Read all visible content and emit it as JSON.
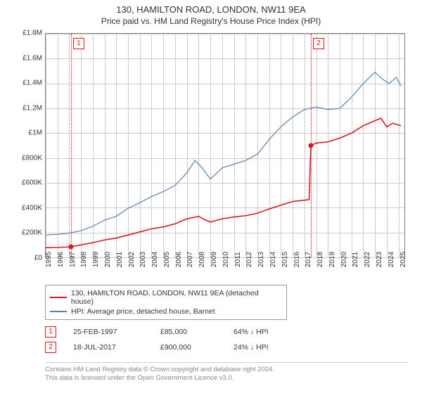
{
  "title": "130, HAMILTON ROAD, LONDON, NW11 9EA",
  "subtitle": "Price paid vs. HM Land Registry's House Price Index (HPI)",
  "chart": {
    "type": "line",
    "background_color": "#ffffff",
    "grid_color": "#cccccc",
    "border_color": "#7f7f7f",
    "label_fontsize": 10,
    "xlim": [
      1995,
      2025.5
    ],
    "ylim": [
      0,
      1800000
    ],
    "ytick_step": 200000,
    "yticks": [
      {
        "v": 0,
        "label": "£0"
      },
      {
        "v": 200000,
        "label": "£200K"
      },
      {
        "v": 400000,
        "label": "£400K"
      },
      {
        "v": 600000,
        "label": "£600K"
      },
      {
        "v": 800000,
        "label": "£800K"
      },
      {
        "v": 1000000,
        "label": "£1M"
      },
      {
        "v": 1200000,
        "label": "£1.2M"
      },
      {
        "v": 1400000,
        "label": "£1.4M"
      },
      {
        "v": 1600000,
        "label": "£1.6M"
      },
      {
        "v": 1800000,
        "label": "£1.8M"
      }
    ],
    "xticks": [
      1995,
      1996,
      1997,
      1998,
      1999,
      2000,
      2001,
      2002,
      2003,
      2004,
      2005,
      2006,
      2007,
      2008,
      2009,
      2010,
      2011,
      2012,
      2013,
      2014,
      2015,
      2016,
      2017,
      2018,
      2019,
      2020,
      2021,
      2022,
      2023,
      2024,
      2025
    ],
    "series_property": {
      "color": "#d8181e",
      "line_width": 1.6,
      "data": [
        [
          1995.0,
          78000
        ],
        [
          1996.0,
          80000
        ],
        [
          1997.15,
          85000
        ],
        [
          1998.0,
          100000
        ],
        [
          1999.0,
          118000
        ],
        [
          2000.0,
          140000
        ],
        [
          2001.0,
          155000
        ],
        [
          2002.0,
          180000
        ],
        [
          2003.0,
          205000
        ],
        [
          2004.0,
          230000
        ],
        [
          2005.0,
          245000
        ],
        [
          2006.0,
          270000
        ],
        [
          2007.0,
          310000
        ],
        [
          2008.0,
          330000
        ],
        [
          2008.6,
          300000
        ],
        [
          2009.0,
          285000
        ],
        [
          2010.0,
          310000
        ],
        [
          2011.0,
          325000
        ],
        [
          2012.0,
          335000
        ],
        [
          2013.0,
          355000
        ],
        [
          2014.0,
          390000
        ],
        [
          2015.0,
          420000
        ],
        [
          2016.0,
          450000
        ],
        [
          2017.0,
          460000
        ],
        [
          2017.4,
          465000
        ],
        [
          2017.55,
          900000
        ],
        [
          2018.0,
          920000
        ],
        [
          2019.0,
          930000
        ],
        [
          2020.0,
          960000
        ],
        [
          2021.0,
          1000000
        ],
        [
          2022.0,
          1060000
        ],
        [
          2023.0,
          1100000
        ],
        [
          2023.5,
          1120000
        ],
        [
          2024.0,
          1050000
        ],
        [
          2024.5,
          1080000
        ],
        [
          2025.2,
          1060000
        ]
      ]
    },
    "series_hpi": {
      "color": "#5b7fb5",
      "line_width": 1.2,
      "data": [
        [
          1995.0,
          180000
        ],
        [
          1996.0,
          185000
        ],
        [
          1997.0,
          195000
        ],
        [
          1998.0,
          215000
        ],
        [
          1999.0,
          250000
        ],
        [
          2000.0,
          300000
        ],
        [
          2001.0,
          330000
        ],
        [
          2002.0,
          395000
        ],
        [
          2003.0,
          440000
        ],
        [
          2004.0,
          490000
        ],
        [
          2005.0,
          530000
        ],
        [
          2006.0,
          580000
        ],
        [
          2007.0,
          680000
        ],
        [
          2007.7,
          780000
        ],
        [
          2008.3,
          720000
        ],
        [
          2009.0,
          630000
        ],
        [
          2010.0,
          720000
        ],
        [
          2011.0,
          750000
        ],
        [
          2012.0,
          780000
        ],
        [
          2013.0,
          830000
        ],
        [
          2014.0,
          950000
        ],
        [
          2015.0,
          1050000
        ],
        [
          2016.0,
          1130000
        ],
        [
          2017.0,
          1190000
        ],
        [
          2018.0,
          1210000
        ],
        [
          2019.0,
          1190000
        ],
        [
          2020.0,
          1200000
        ],
        [
          2021.0,
          1290000
        ],
        [
          2022.0,
          1400000
        ],
        [
          2023.0,
          1490000
        ],
        [
          2023.7,
          1430000
        ],
        [
          2024.2,
          1400000
        ],
        [
          2024.8,
          1450000
        ],
        [
          2025.2,
          1380000
        ]
      ]
    },
    "sale_markers": [
      {
        "n": "1",
        "x": 1997.15,
        "y": 85000,
        "color": "#d8181e"
      },
      {
        "n": "2",
        "x": 2017.55,
        "y": 900000,
        "color": "#d8181e"
      }
    ]
  },
  "legend": {
    "items": [
      {
        "color": "#d8181e",
        "label": "130, HAMILTON ROAD, LONDON, NW11 9EA (detached house)"
      },
      {
        "color": "#5b7fb5",
        "label": "HPI: Average price, detached house, Barnet"
      }
    ]
  },
  "sales": [
    {
      "n": "1",
      "color": "#d8181e",
      "date": "25-FEB-1997",
      "price": "£85,000",
      "diff": "64% ↓ HPI"
    },
    {
      "n": "2",
      "color": "#d8181e",
      "date": "18-JUL-2017",
      "price": "£900,000",
      "diff": "24% ↓ HPI"
    }
  ],
  "footer": {
    "line1": "Contains HM Land Registry data © Crown copyright and database right 2024.",
    "line2": "This data is licensed under the Open Government Licence v3.0."
  }
}
